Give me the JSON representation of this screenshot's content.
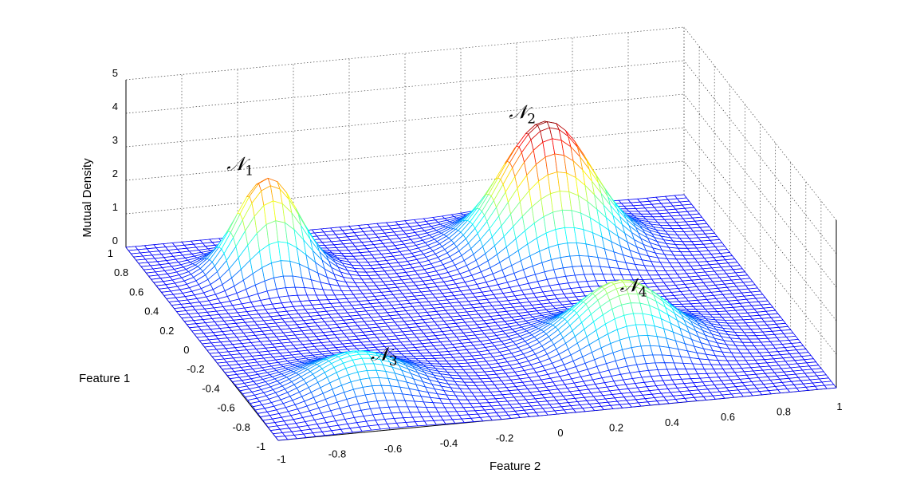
{
  "chart_data": {
    "type": "surface",
    "xlabel": "Feature 2",
    "ylabel": "Feature 1",
    "zlabel": "Mutual Density",
    "xlim": [
      -1,
      1
    ],
    "ylim": [
      -1,
      1
    ],
    "zlim": [
      0,
      5
    ],
    "x_ticks": [
      "-1",
      "-0.8",
      "-0.6",
      "-0.4",
      "-0.2",
      "0",
      "0.2",
      "0.4",
      "0.6",
      "0.8",
      "1"
    ],
    "y_ticks": [
      "-1",
      "-0.8",
      "-0.6",
      "-0.4",
      "-0.2",
      "0",
      "0.2",
      "0.4",
      "0.6",
      "0.8",
      "1"
    ],
    "z_ticks": [
      "0",
      "1",
      "2",
      "3",
      "4",
      "5"
    ],
    "grid": true,
    "peaks": [
      {
        "label": "𝒩",
        "sub": "1",
        "feature2": -0.6,
        "feature1": 0.6,
        "height": 2.9,
        "spread": 0.11
      },
      {
        "label": "𝒩",
        "sub": "2",
        "feature2": 0.4,
        "feature1": 0.6,
        "height": 3.8,
        "spread": 0.16
      },
      {
        "label": "𝒩",
        "sub": "3",
        "feature2": -0.6,
        "feature1": -0.6,
        "height": 1.1,
        "spread": 0.16
      },
      {
        "label": "𝒩",
        "sub": "4",
        "feature2": 0.4,
        "feature1": -0.4,
        "height": 1.9,
        "spread": 0.16
      }
    ],
    "colormap": "jet"
  }
}
